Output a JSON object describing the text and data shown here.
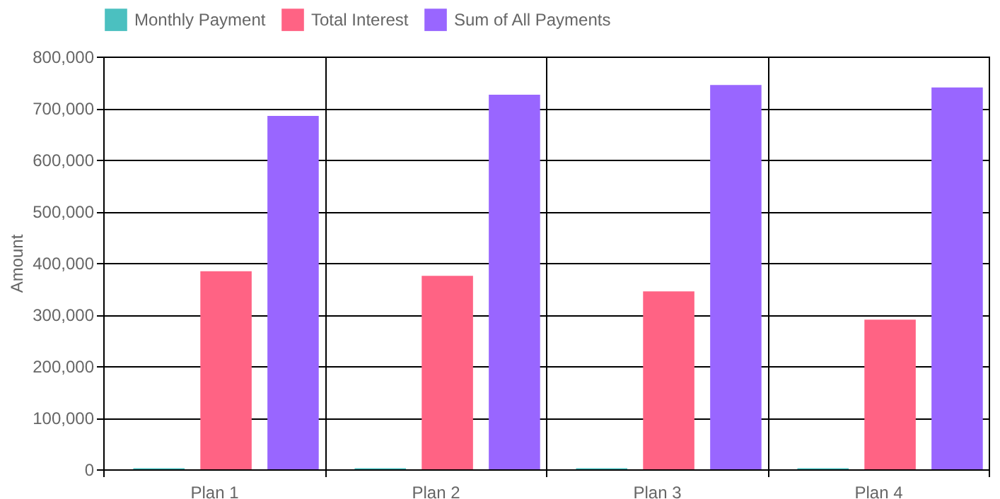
{
  "chart_data": {
    "type": "bar",
    "ylabel": "Amount",
    "categories": [
      "Plan 1",
      "Plan 2",
      "Plan 3",
      "Plan 4"
    ],
    "series": [
      {
        "name": "Monthly Payment",
        "color": "#4bc0c0",
        "values": [
          2000,
          2000,
          2000,
          2000
        ]
      },
      {
        "name": "Total Interest",
        "color": "#ff6384",
        "values": [
          384000,
          375000,
          345000,
          290000
        ]
      },
      {
        "name": "Sum of All Payments",
        "color": "#9966ff",
        "values": [
          685000,
          726000,
          745000,
          740000
        ]
      }
    ],
    "ylim": [
      0,
      800000
    ],
    "yticks": [
      0,
      {
        "value": 100000,
        "label": "100,000"
      },
      {
        "value": 200000,
        "label": "200,000"
      },
      {
        "value": 300000,
        "label": "300,000"
      },
      {
        "value": 400000,
        "label": "400,000"
      },
      {
        "value": 500000,
        "label": "500,000"
      },
      {
        "value": 600000,
        "label": "600,000"
      },
      {
        "value": 700000,
        "label": "700,000"
      },
      {
        "value": 800000,
        "label": "800,000"
      }
    ],
    "grid": true,
    "legend": "top"
  }
}
